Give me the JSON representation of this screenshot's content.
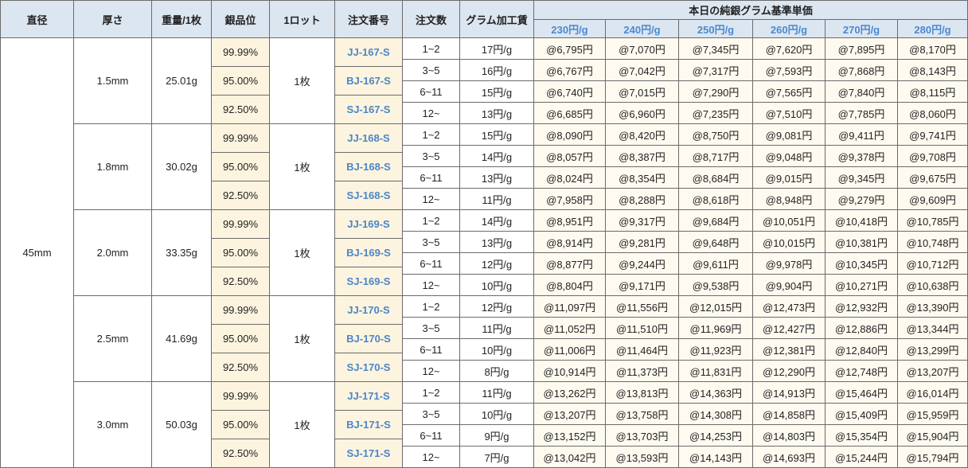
{
  "header": {
    "diameter": "直径",
    "thickness": "厚さ",
    "weight": "重量/1枚",
    "grade": "銀品位",
    "lot": "1ロット",
    "order_no": "注文番号",
    "quantity": "注文数",
    "fee": "グラム加工賃",
    "price_group": "本日の純銀グラム基準単価",
    "base_prices": [
      "230円/g",
      "240円/g",
      "250円/g",
      "260円/g",
      "270円/g",
      "280円/g"
    ]
  },
  "diameter": "45mm",
  "groups": [
    {
      "thickness": "1.5mm",
      "weight": "25.01g",
      "lot": "1枚",
      "grades": [
        "99.99%",
        "95.00%",
        "92.50%"
      ],
      "order_nos": [
        "JJ-167-S",
        "BJ-167-S",
        "SJ-167-S"
      ],
      "rows": [
        {
          "quantity": "1~2",
          "fee": "17円/g",
          "prices": [
            "@6,795円",
            "@7,070円",
            "@7,345円",
            "@7,620円",
            "@7,895円",
            "@8,170円"
          ]
        },
        {
          "quantity": "3~5",
          "fee": "16円/g",
          "prices": [
            "@6,767円",
            "@7,042円",
            "@7,317円",
            "@7,593円",
            "@7,868円",
            "@8,143円"
          ]
        },
        {
          "quantity": "6~11",
          "fee": "15円/g",
          "prices": [
            "@6,740円",
            "@7,015円",
            "@7,290円",
            "@7,565円",
            "@7,840円",
            "@8,115円"
          ]
        },
        {
          "quantity": "12~",
          "fee": "13円/g",
          "prices": [
            "@6,685円",
            "@6,960円",
            "@7,235円",
            "@7,510円",
            "@7,785円",
            "@8,060円"
          ]
        }
      ]
    },
    {
      "thickness": "1.8mm",
      "weight": "30.02g",
      "lot": "1枚",
      "grades": [
        "99.99%",
        "95.00%",
        "92.50%"
      ],
      "order_nos": [
        "JJ-168-S",
        "BJ-168-S",
        "SJ-168-S"
      ],
      "rows": [
        {
          "quantity": "1~2",
          "fee": "15円/g",
          "prices": [
            "@8,090円",
            "@8,420円",
            "@8,750円",
            "@9,081円",
            "@9,411円",
            "@9,741円"
          ]
        },
        {
          "quantity": "3~5",
          "fee": "14円/g",
          "prices": [
            "@8,057円",
            "@8,387円",
            "@8,717円",
            "@9,048円",
            "@9,378円",
            "@9,708円"
          ]
        },
        {
          "quantity": "6~11",
          "fee": "13円/g",
          "prices": [
            "@8,024円",
            "@8,354円",
            "@8,684円",
            "@9,015円",
            "@9,345円",
            "@9,675円"
          ]
        },
        {
          "quantity": "12~",
          "fee": "11円/g",
          "prices": [
            "@7,958円",
            "@8,288円",
            "@8,618円",
            "@8,948円",
            "@9,279円",
            "@9,609円"
          ]
        }
      ]
    },
    {
      "thickness": "2.0mm",
      "weight": "33.35g",
      "lot": "1枚",
      "grades": [
        "99.99%",
        "95.00%",
        "92.50%"
      ],
      "order_nos": [
        "JJ-169-S",
        "BJ-169-S",
        "SJ-169-S"
      ],
      "rows": [
        {
          "quantity": "1~2",
          "fee": "14円/g",
          "prices": [
            "@8,951円",
            "@9,317円",
            "@9,684円",
            "@10,051円",
            "@10,418円",
            "@10,785円"
          ]
        },
        {
          "quantity": "3~5",
          "fee": "13円/g",
          "prices": [
            "@8,914円",
            "@9,281円",
            "@9,648円",
            "@10,015円",
            "@10,381円",
            "@10,748円"
          ]
        },
        {
          "quantity": "6~11",
          "fee": "12円/g",
          "prices": [
            "@8,877円",
            "@9,244円",
            "@9,611円",
            "@9,978円",
            "@10,345円",
            "@10,712円"
          ]
        },
        {
          "quantity": "12~",
          "fee": "10円/g",
          "prices": [
            "@8,804円",
            "@9,171円",
            "@9,538円",
            "@9,904円",
            "@10,271円",
            "@10,638円"
          ]
        }
      ]
    },
    {
      "thickness": "2.5mm",
      "weight": "41.69g",
      "lot": "1枚",
      "grades": [
        "99.99%",
        "95.00%",
        "92.50%"
      ],
      "order_nos": [
        "JJ-170-S",
        "BJ-170-S",
        "SJ-170-S"
      ],
      "rows": [
        {
          "quantity": "1~2",
          "fee": "12円/g",
          "prices": [
            "@11,097円",
            "@11,556円",
            "@12,015円",
            "@12,473円",
            "@12,932円",
            "@13,390円"
          ]
        },
        {
          "quantity": "3~5",
          "fee": "11円/g",
          "prices": [
            "@11,052円",
            "@11,510円",
            "@11,969円",
            "@12,427円",
            "@12,886円",
            "@13,344円"
          ]
        },
        {
          "quantity": "6~11",
          "fee": "10円/g",
          "prices": [
            "@11,006円",
            "@11,464円",
            "@11,923円",
            "@12,381円",
            "@12,840円",
            "@13,299円"
          ]
        },
        {
          "quantity": "12~",
          "fee": "8円/g",
          "prices": [
            "@10,914円",
            "@11,373円",
            "@11,831円",
            "@12,290円",
            "@12,748円",
            "@13,207円"
          ]
        }
      ]
    },
    {
      "thickness": "3.0mm",
      "weight": "50.03g",
      "lot": "1枚",
      "grades": [
        "99.99%",
        "95.00%",
        "92.50%"
      ],
      "order_nos": [
        "JJ-171-S",
        "BJ-171-S",
        "SJ-171-S"
      ],
      "rows": [
        {
          "quantity": "1~2",
          "fee": "11円/g",
          "prices": [
            "@13,262円",
            "@13,813円",
            "@14,363円",
            "@14,913円",
            "@15,464円",
            "@16,014円"
          ]
        },
        {
          "quantity": "3~5",
          "fee": "10円/g",
          "prices": [
            "@13,207円",
            "@13,758円",
            "@14,308円",
            "@14,858円",
            "@15,409円",
            "@15,959円"
          ]
        },
        {
          "quantity": "6~11",
          "fee": "9円/g",
          "prices": [
            "@13,152円",
            "@13,703円",
            "@14,253円",
            "@14,803円",
            "@15,354円",
            "@15,904円"
          ]
        },
        {
          "quantity": "12~",
          "fee": "7円/g",
          "prices": [
            "@13,042円",
            "@13,593円",
            "@14,143円",
            "@14,693円",
            "@15,244円",
            "@15,794円"
          ]
        }
      ]
    }
  ]
}
